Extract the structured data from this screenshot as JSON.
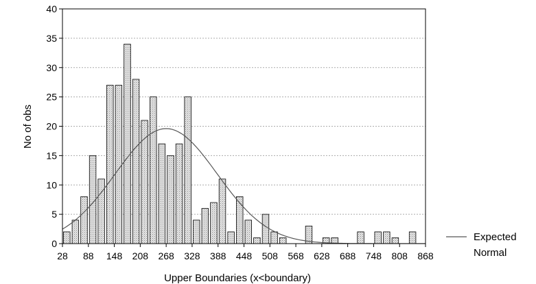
{
  "chart_data": {
    "type": "bar",
    "xlabel": "Upper Boundaries (x<boundary)",
    "ylabel": "No of obs",
    "xlim": [
      28,
      868
    ],
    "ylim": [
      0,
      40
    ],
    "x_ticks": [
      28,
      88,
      148,
      208,
      268,
      328,
      388,
      448,
      508,
      568,
      628,
      688,
      748,
      808,
      868
    ],
    "y_ticks": [
      0,
      5,
      10,
      15,
      20,
      25,
      30,
      35,
      40
    ],
    "bin_width": 20,
    "grid": "horizontal dashed",
    "bars": {
      "upper_boundaries": [
        48,
        68,
        88,
        108,
        128,
        148,
        168,
        188,
        208,
        228,
        248,
        268,
        288,
        308,
        328,
        348,
        368,
        388,
        408,
        428,
        448,
        468,
        488,
        508,
        528,
        548,
        568,
        588,
        608,
        628,
        648,
        668,
        688,
        708,
        728,
        748,
        768,
        788,
        808,
        828,
        848
      ],
      "values": [
        2,
        4,
        8,
        15,
        11,
        27,
        27,
        34,
        28,
        21,
        25,
        17,
        15,
        17,
        25,
        4,
        6,
        7,
        11,
        2,
        8,
        4,
        1,
        5,
        2,
        1,
        0,
        0,
        3,
        0,
        1,
        1,
        0,
        0,
        2,
        0,
        2,
        2,
        1,
        0,
        2
      ]
    },
    "expected_curve": {
      "name": "Expected Normal",
      "mean": 268,
      "peak": 19.6,
      "sd": 118
    },
    "legend": {
      "position": "right",
      "lines": [
        "Expected",
        "Normal"
      ],
      "line_color": "#555555"
    },
    "colors": {
      "bar_fill": "#d9d9d9",
      "bar_stroke": "#000000",
      "curve": "#555555",
      "grid": "#aaaaaa"
    }
  }
}
